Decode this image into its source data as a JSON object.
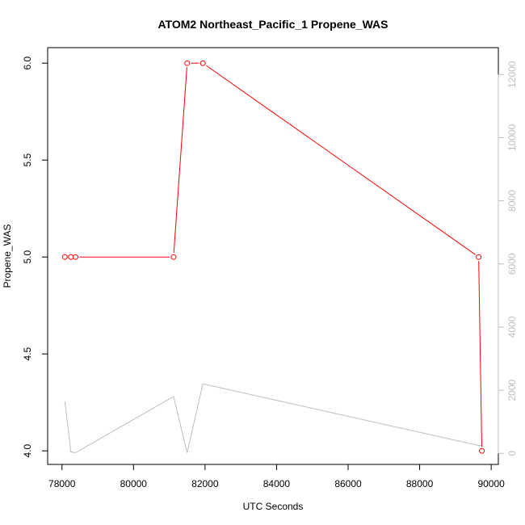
{
  "chart_data": {
    "type": "line",
    "title": "ATOM2 Northeast_Pacific_1 Propene_WAS",
    "xlabel": "UTC Seconds",
    "ylabel": "Propene_WAS",
    "xlim": [
      77600,
      90200
    ],
    "ylim": [
      3.93,
      6.08
    ],
    "x_ticks": [
      78000,
      80000,
      82000,
      84000,
      86000,
      88000,
      90000
    ],
    "y_ticks": [
      4.0,
      4.5,
      5.0,
      5.5,
      6.0
    ],
    "y2lim": [
      -350,
      12850
    ],
    "y2_ticks": [
      0,
      2000,
      4000,
      6000,
      8000,
      10000,
      12000
    ],
    "primary_color": "#ff0000",
    "secondary_color": "#bdbdbd",
    "series": [
      {
        "axis": "left",
        "style": "line-with-circle-markers",
        "x": [
          78080,
          78250,
          78380,
          81120,
          81500,
          81940,
          89650,
          89740
        ],
        "y": [
          5.0,
          5.0,
          5.0,
          5.0,
          6.0,
          6.0,
          5.0,
          4.0
        ]
      },
      {
        "axis": "right",
        "style": "line",
        "x": [
          78080,
          78250,
          78380,
          81120,
          81500,
          81940,
          89650,
          89740
        ],
        "y": [
          1650,
          50,
          20,
          1800,
          20,
          2200,
          250,
          250
        ]
      }
    ]
  }
}
